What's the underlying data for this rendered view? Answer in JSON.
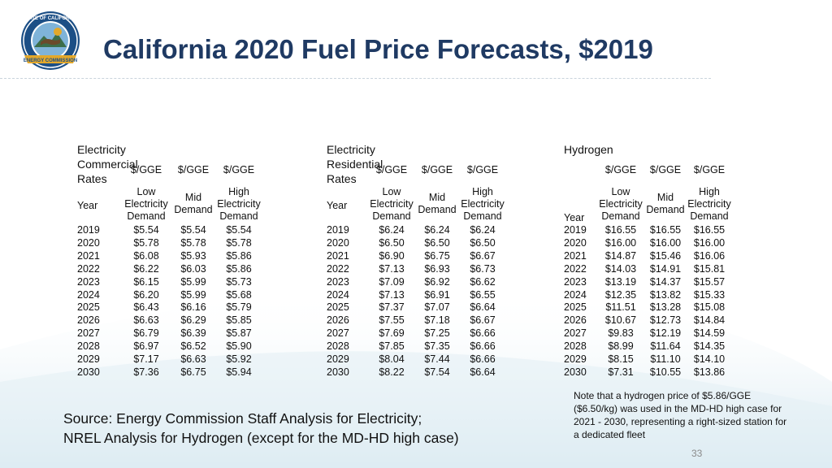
{
  "title": "California 2020 Fuel Price Forecasts, $2019",
  "logo": {
    "icon": "california-energy-commission-seal-icon",
    "text_top": "STATE OF CALIFORNIA",
    "text_bottom": "ENERGY COMMISSION"
  },
  "tables": [
    {
      "label": [
        "Electricity",
        "Commercial",
        "Rates"
      ],
      "units": [
        "$/GGE",
        "$/GGE",
        "$/GGE"
      ],
      "year_label": "Year",
      "columns": [
        [
          "Low",
          "Electricity",
          "Demand"
        ],
        [
          "Mid",
          "Demand"
        ],
        [
          "High",
          "Electricity",
          "Demand"
        ]
      ],
      "rows": [
        [
          "2019",
          "$5.54",
          "$5.54",
          "$5.54"
        ],
        [
          "2020",
          "$5.78",
          "$5.78",
          "$5.78"
        ],
        [
          "2021",
          "$6.08",
          "$5.93",
          "$5.86"
        ],
        [
          "2022",
          "$6.22",
          "$6.03",
          "$5.86"
        ],
        [
          "2023",
          "$6.15",
          "$5.99",
          "$5.73"
        ],
        [
          "2024",
          "$6.20",
          "$5.99",
          "$5.68"
        ],
        [
          "2025",
          "$6.43",
          "$6.16",
          "$5.79"
        ],
        [
          "2026",
          "$6.63",
          "$6.29",
          "$5.85"
        ],
        [
          "2027",
          "$6.79",
          "$6.39",
          "$5.87"
        ],
        [
          "2028",
          "$6.97",
          "$6.52",
          "$5.90"
        ],
        [
          "2029",
          "$7.17",
          "$6.63",
          "$5.92"
        ],
        [
          "2030",
          "$7.36",
          "$6.75",
          "$5.94"
        ]
      ]
    },
    {
      "label": [
        "Electricity",
        "Residential",
        "Rates"
      ],
      "units": [
        "$/GGE",
        "$/GGE",
        "$/GGE"
      ],
      "year_label": "Year",
      "columns": [
        [
          "Low",
          "Electricity",
          "Demand"
        ],
        [
          "Mid",
          "Demand"
        ],
        [
          "High",
          "Electricity",
          "Demand"
        ]
      ],
      "rows": [
        [
          "2019",
          "$6.24",
          "$6.24",
          "$6.24"
        ],
        [
          "2020",
          "$6.50",
          "$6.50",
          "$6.50"
        ],
        [
          "2021",
          "$6.90",
          "$6.75",
          "$6.67"
        ],
        [
          "2022",
          "$7.13",
          "$6.93",
          "$6.73"
        ],
        [
          "2023",
          "$7.09",
          "$6.92",
          "$6.62"
        ],
        [
          "2024",
          "$7.13",
          "$6.91",
          "$6.55"
        ],
        [
          "2025",
          "$7.37",
          "$7.07",
          "$6.64"
        ],
        [
          "2026",
          "$7.55",
          "$7.18",
          "$6.67"
        ],
        [
          "2027",
          "$7.69",
          "$7.25",
          "$6.66"
        ],
        [
          "2028",
          "$7.85",
          "$7.35",
          "$6.66"
        ],
        [
          "2029",
          "$8.04",
          "$7.44",
          "$6.66"
        ],
        [
          "2030",
          "$8.22",
          "$7.54",
          "$6.64"
        ]
      ]
    },
    {
      "label": [
        "Hydrogen"
      ],
      "units": [
        "$/GGE",
        "$/GGE",
        "$/GGE"
      ],
      "year_label": "Year",
      "columns": [
        [
          "Low",
          "Electricity",
          "Demand"
        ],
        [
          "Mid",
          "Demand"
        ],
        [
          "High",
          "Electricity",
          "Demand"
        ]
      ],
      "rows": [
        [
          "2019",
          "$16.55",
          "$16.55",
          "$16.55"
        ],
        [
          "2020",
          "$16.00",
          "$16.00",
          "$16.00"
        ],
        [
          "2021",
          "$14.87",
          "$15.46",
          "$16.06"
        ],
        [
          "2022",
          "$14.03",
          "$14.91",
          "$15.81"
        ],
        [
          "2023",
          "$13.19",
          "$14.37",
          "$15.57"
        ],
        [
          "2024",
          "$12.35",
          "$13.82",
          "$15.33"
        ],
        [
          "2025",
          "$11.51",
          "$13.28",
          "$15.08"
        ],
        [
          "2026",
          "$10.67",
          "$12.73",
          "$14.84"
        ],
        [
          "2027",
          "$9.83",
          "$12.19",
          "$14.59"
        ],
        [
          "2028",
          "$8.99",
          "$11.64",
          "$14.35"
        ],
        [
          "2029",
          "$8.15",
          "$11.10",
          "$14.10"
        ],
        [
          "2030",
          "$7.31",
          "$10.55",
          "$13.86"
        ]
      ]
    }
  ],
  "source": [
    "Source: Energy Commission Staff Analysis for Electricity;",
    "NREL Analysis for Hydrogen (except for the MD-HD high case)"
  ],
  "note": "Note that a hydrogen price of $5.86/GGE ($6.50/kg) was used in the MD-HD high case for 2021 - 2030, representing a right-sized station for a dedicated fleet",
  "page_number": "33",
  "colors": {
    "title": "#1f3a63",
    "seal_blue": "#1c4f86",
    "seal_gold": "#e3a82b",
    "wave": "#dbeaf1"
  }
}
